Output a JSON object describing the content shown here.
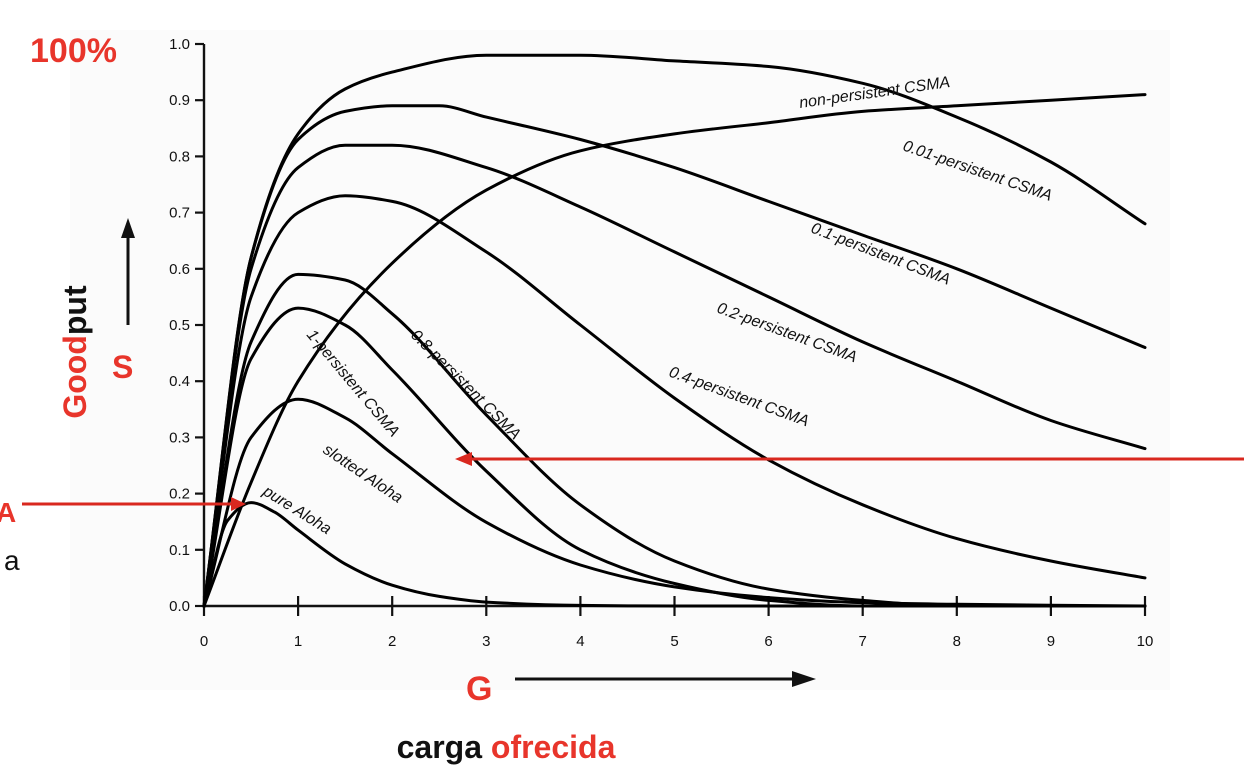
{
  "chart_data": {
    "type": "line",
    "xlim": [
      0,
      10
    ],
    "ylim": [
      0,
      1.0
    ],
    "x_ticks": [
      "0",
      "1",
      "2",
      "3",
      "4",
      "5",
      "6",
      "7",
      "8",
      "9",
      "10"
    ],
    "y_ticks": [
      "0.0",
      "0.1",
      "0.2",
      "0.3",
      "0.4",
      "0.5",
      "0.6",
      "0.7",
      "0.8",
      "0.9",
      "1.0"
    ],
    "grid": false,
    "x_symbol": "G",
    "y_symbol": "S",
    "xlabel_parts": [
      "carga",
      "ofrecida"
    ],
    "ylabel_parts": [
      "Good",
      "put"
    ],
    "top_annotation": "100%",
    "series": [
      {
        "name": "non-persistent CSMA",
        "x": [
          0,
          0.5,
          1,
          1.5,
          2,
          3,
          4,
          5,
          6,
          7,
          8,
          9,
          10
        ],
        "y": [
          0,
          0.62,
          0.84,
          0.92,
          0.95,
          0.98,
          0.98,
          0.97,
          0.96,
          0.93,
          0.87,
          0.79,
          0.68
        ]
      },
      {
        "name": "0.01-persistent CSMA",
        "x": [
          0,
          0.5,
          1,
          2,
          3,
          4,
          5,
          6,
          7,
          8,
          9,
          10
        ],
        "y": [
          0,
          0.22,
          0.4,
          0.61,
          0.74,
          0.81,
          0.84,
          0.86,
          0.88,
          0.89,
          0.9,
          0.91
        ]
      },
      {
        "name": "0.1-persistent CSMA",
        "x": [
          0,
          0.5,
          1,
          1.5,
          2,
          2.5,
          3,
          4,
          5,
          6,
          7,
          8,
          9,
          10
        ],
        "y": [
          0,
          0.62,
          0.83,
          0.88,
          0.89,
          0.89,
          0.87,
          0.83,
          0.78,
          0.72,
          0.66,
          0.6,
          0.53,
          0.46
        ]
      },
      {
        "name": "0.2-persistent CSMA",
        "x": [
          0,
          0.5,
          1,
          1.5,
          2,
          3,
          4,
          5,
          6,
          7,
          8,
          9,
          10
        ],
        "y": [
          0,
          0.6,
          0.78,
          0.82,
          0.82,
          0.78,
          0.71,
          0.63,
          0.55,
          0.47,
          0.4,
          0.33,
          0.28
        ]
      },
      {
        "name": "0.4-persistent CSMA",
        "x": [
          0,
          0.5,
          1,
          1.5,
          2,
          3,
          4,
          5,
          6,
          7,
          8,
          9,
          10
        ],
        "y": [
          0,
          0.55,
          0.7,
          0.73,
          0.72,
          0.63,
          0.5,
          0.37,
          0.26,
          0.18,
          0.12,
          0.08,
          0.05
        ]
      },
      {
        "name": "0.8-persistent CSMA",
        "x": [
          0,
          0.5,
          1,
          1.5,
          2,
          3,
          4,
          5,
          6,
          7,
          8,
          10
        ],
        "y": [
          0,
          0.47,
          0.59,
          0.58,
          0.52,
          0.34,
          0.18,
          0.08,
          0.03,
          0.01,
          0.0,
          0.0
        ]
      },
      {
        "name": "1-persistent CSMA",
        "x": [
          0,
          0.5,
          1,
          1.5,
          2,
          3,
          4,
          5,
          6,
          7,
          8,
          10
        ],
        "y": [
          0,
          0.44,
          0.53,
          0.5,
          0.42,
          0.24,
          0.1,
          0.04,
          0.01,
          0.0,
          0.0,
          0.0
        ]
      },
      {
        "name": "slotted Aloha",
        "x": [
          0,
          0.5,
          1,
          1.5,
          2,
          3,
          4,
          5,
          6,
          7,
          8,
          10
        ],
        "y": [
          0,
          0.3,
          0.368,
          0.335,
          0.271,
          0.149,
          0.073,
          0.034,
          0.015,
          0.006,
          0.003,
          0.0
        ]
      },
      {
        "name": "pure Aloha",
        "x": [
          0,
          0.25,
          0.5,
          0.75,
          1,
          1.5,
          2,
          2.5,
          3,
          4,
          5,
          10
        ],
        "y": [
          0,
          0.152,
          0.184,
          0.167,
          0.135,
          0.075,
          0.037,
          0.017,
          0.007,
          0.001,
          0.0,
          0.0
        ]
      }
    ]
  },
  "cut_off_text": {
    "left_top": "A",
    "left_bottom": "a"
  },
  "colors": {
    "accent_red": "#e8352b",
    "curve": "#000000"
  }
}
